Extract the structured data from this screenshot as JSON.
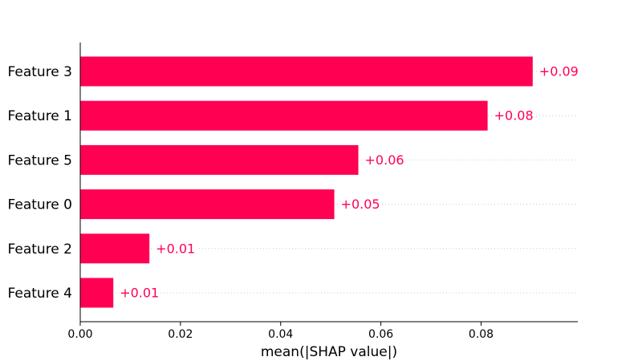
{
  "colors": {
    "bar": "#ff0052",
    "label": "#ff0052",
    "axis": "#000000",
    "guide": "#cccccc"
  },
  "chart_data": {
    "type": "bar",
    "orientation": "horizontal",
    "categories": [
      "Feature 3",
      "Feature 1",
      "Feature 5",
      "Feature 0",
      "Feature 2",
      "Feature 4"
    ],
    "values": [
      0.0903,
      0.0813,
      0.0555,
      0.0507,
      0.0138,
      0.0066
    ],
    "value_labels": [
      "+0.09",
      "+0.08",
      "+0.06",
      "+0.05",
      "+0.01",
      "+0.01"
    ],
    "xlabel": "mean(|SHAP value|)",
    "ylabel": "",
    "xlim": [
      0,
      0.0993
    ],
    "xticks": [
      0,
      0.02,
      0.04,
      0.06,
      0.08
    ],
    "xtick_labels": [
      "0.00",
      "0.02",
      "0.04",
      "0.06",
      "0.08"
    ],
    "grid": false,
    "legend": "none"
  }
}
